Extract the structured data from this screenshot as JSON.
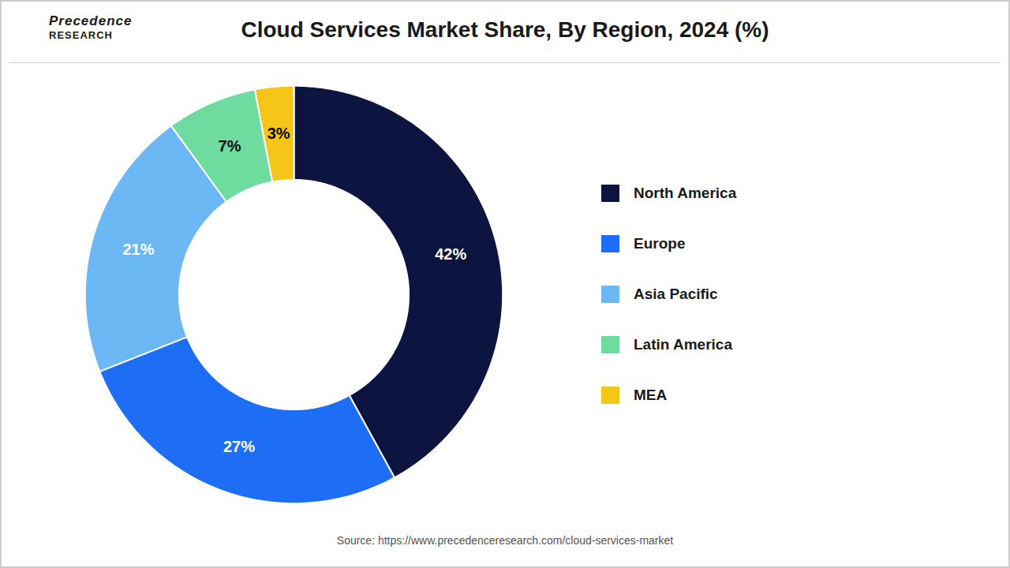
{
  "chart_data": {
    "type": "pie",
    "title": "Cloud Services Market Share, By Region, 2024 (%)",
    "categories": [
      "North America",
      "Europe",
      "Asia Pacific",
      "Latin America",
      "MEA"
    ],
    "values": [
      42,
      27,
      21,
      7,
      3
    ],
    "value_labels": [
      "42%",
      "27%",
      "21%",
      "7%",
      "3%"
    ],
    "colors": [
      "#0d1440",
      "#1e6ef5",
      "#6bb8f5",
      "#6ddc9e",
      "#f5c518"
    ],
    "data_labels": true,
    "legend": "right",
    "annotations": [
      "Precedence",
      "RESEARCH",
      "Source: https://www.precedenceresearch.com/cloud-services-market"
    ]
  }
}
